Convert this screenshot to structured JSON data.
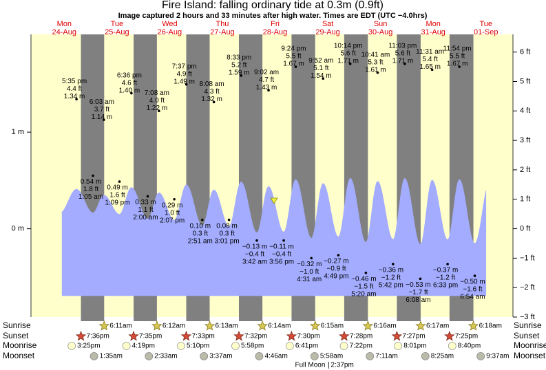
{
  "chart_data": {
    "type": "area",
    "title": "Fire Island: falling  ordinary tide at 0.3m (0.9ft)",
    "subtitle": "Image captured 2 hours and 33 minutes after high water. Times are EDT (UTC −4.0hrs)",
    "day_names": [
      "Mon",
      "Tue",
      "Wed",
      "Thu",
      "Fri",
      "Sat",
      "Sun",
      "Mon",
      "Tue"
    ],
    "day_dates": [
      "24-Aug",
      "25-Aug",
      "26-Aug",
      "27-Aug",
      "28-Aug",
      "29-Aug",
      "30-Aug",
      "31-Aug",
      "01-Sep"
    ],
    "times": [
      "5:35 pm",
      "1:05 am",
      "6:03 am",
      "1:09 pm",
      "6:36 pm",
      "2:00 am",
      "7:08 am",
      "2:07 pm",
      "7:37 pm",
      "2:51 am",
      "8:08 am",
      "3:01 pm",
      "8:33 pm",
      "3:42 am",
      "9:02 am",
      "3:56 pm",
      "9:24 pm",
      "4:31 am",
      "9:52 am",
      "4:49 pm",
      "10:14 pm",
      "5:20 am",
      "10:41 am",
      "5:42 pm",
      "11:03 pm",
      "6:08 am",
      "11:31 am",
      "6:33 pm",
      "11:54 pm",
      "6:54 am"
    ],
    "values": [
      4.4,
      1.8,
      3.7,
      1.6,
      4.6,
      1.1,
      4.0,
      1.0,
      4.9,
      0.3,
      4.3,
      0.3,
      5.2,
      -0.4,
      4.7,
      -0.4,
      5.5,
      -1.0,
      5.1,
      -0.9,
      5.6,
      -1.5,
      5.3,
      -1.2,
      5.6,
      -1.7,
      5.4,
      -1.2,
      5.5,
      -1.6
    ],
    "value_labels": [
      "4.4 ft",
      "1.8 ft",
      "3.7 ft",
      "1.6 ft",
      "4.6 ft",
      "1.1 ft",
      "4.0 ft",
      "1.0 ft",
      "4.9 ft",
      "0.3 ft",
      "4.3 ft",
      "0.3 ft",
      "5.2 ft",
      "−0.4 ft",
      "4.7 ft",
      "−0.4 ft",
      "5.5 ft",
      "−1.0 ft",
      "5.1 ft",
      "−0.9 ft",
      "5.6 ft",
      "−1.5 ft",
      "5.3 ft",
      "−1.2 ft",
      "5.6 ft",
      "−1.7 ft",
      "5.4 ft",
      "−1.2 ft",
      "5.5 ft",
      "−1.6 ft"
    ],
    "values_m": [
      1.34,
      0.54,
      1.14,
      0.49,
      1.4,
      0.33,
      1.22,
      0.29,
      1.49,
      0.1,
      1.32,
      0.08,
      1.59,
      -0.13,
      1.43,
      -0.11,
      1.67,
      -0.32,
      1.54,
      -0.27,
      1.71,
      -0.46,
      1.61,
      -0.36,
      1.71,
      -0.53,
      1.65,
      -0.37,
      1.67,
      -0.5
    ],
    "value_labels_m": [
      "1.34 m",
      "0.54 m",
      "1.14 m",
      "0.49 m",
      "1.40 m",
      "0.33 m",
      "1.22 m",
      "0.29 m",
      "1.49 m",
      "0.10 m",
      "1.32 m",
      "0.08 m",
      "1.59 m",
      "−0.13 m",
      "1.43 m",
      "−0.11 m",
      "1.67 m",
      "−0.32 m",
      "1.54 m",
      "−0.27 m",
      "1.71 m",
      "−0.46 m",
      "1.61 m",
      "−0.36 m",
      "1.71 m",
      "−0.53 m",
      "1.65 m",
      "−0.37 m",
      "1.67 m",
      "−0.50 m"
    ],
    "color": "#a3acff",
    "ylim": [
      -0.914,
      2.012
    ],
    "yticks": [
      {
        "value": 1,
        "label": "1 m"
      },
      {
        "value": 0,
        "label": "0 m"
      }
    ],
    "y2lim": [
      -3,
      6.6
    ],
    "y2ticks": [
      {
        "value": 6,
        "label": "6 ft"
      },
      {
        "value": 5,
        "label": "5 ft"
      },
      {
        "value": 4,
        "label": "4 ft"
      },
      {
        "value": 3,
        "label": "3 ft"
      },
      {
        "value": 2,
        "label": "2 ft"
      },
      {
        "value": 1,
        "label": "1 ft"
      },
      {
        "value": 0,
        "label": "0 ft"
      },
      {
        "value": -1,
        "label": "−1 ft"
      },
      {
        "value": -2,
        "label": "−2 ft"
      },
      {
        "value": -3,
        "label": "−3 ft"
      }
    ],
    "row_labels": [
      "Sunrise",
      "Sunset",
      "Moonrise",
      "Moonset"
    ],
    "sunrise": [
      "6:11am",
      "6:12am",
      "6:13am",
      "6:14am",
      "6:15am",
      "6:16am",
      "6:17am",
      "6:18am"
    ],
    "sunset": [
      "7:36pm",
      "7:35pm",
      "7:33pm",
      "7:32pm",
      "7:30pm",
      "7:28pm",
      "7:27pm",
      "7:25pm"
    ],
    "moonrise": [
      "3:25pm",
      "4:19pm",
      "5:10pm",
      "5:58pm",
      "6:41pm",
      "7:22pm",
      "8:01pm",
      "8:40pm"
    ],
    "moonset": [
      "1:35am",
      "2:33am",
      "3:37am",
      "4:46am",
      "5:58am",
      "7:11am",
      "8:25am",
      "9:37am"
    ],
    "full_moon": {
      "label": "Full Moon",
      "time": "2:37pm"
    }
  }
}
